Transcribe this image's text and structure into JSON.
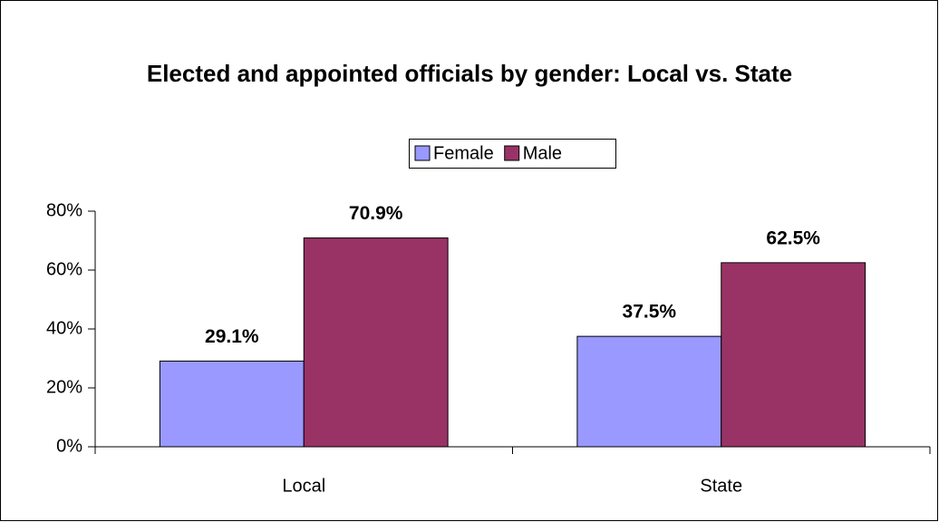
{
  "chart_data": {
    "type": "bar",
    "title": "Elected and appointed officials by gender: Local vs. State",
    "categories": [
      "Local",
      "State"
    ],
    "series": [
      {
        "name": "Female",
        "color": "#9999ff",
        "values": [
          29.1,
          37.5
        ],
        "value_labels": [
          "29.1%",
          "37.5%"
        ]
      },
      {
        "name": "Male",
        "color": "#993366",
        "values": [
          70.9,
          62.5
        ],
        "value_labels": [
          "70.9%",
          "62.5%"
        ]
      }
    ],
    "ylim": [
      0,
      80
    ],
    "yticks": [
      {
        "value": 0,
        "label": "0%"
      },
      {
        "value": 20,
        "label": "20%"
      },
      {
        "value": 40,
        "label": "40%"
      },
      {
        "value": 60,
        "label": "60%"
      },
      {
        "value": 80,
        "label": "80%"
      }
    ],
    "grid": false,
    "legend": "top"
  }
}
